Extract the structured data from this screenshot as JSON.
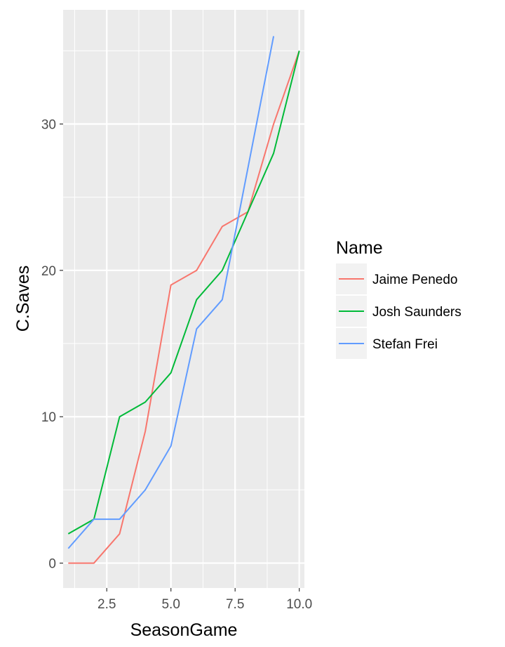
{
  "chart_data": {
    "type": "line",
    "xlabel": "SeasonGame",
    "ylabel": "C.Saves",
    "xlim": [
      0.8,
      10.2
    ],
    "ylim": [
      -1.7,
      37.8
    ],
    "x_ticks": [
      "2.5",
      "5.0",
      "7.5",
      "10.0"
    ],
    "y_ticks": [
      "0",
      "10",
      "20",
      "30"
    ],
    "grid": true,
    "legend": {
      "title": "Name",
      "placement": "right"
    },
    "series": [
      {
        "name": "Jaime Penedo",
        "color": "#F8766D",
        "x": [
          1,
          2,
          3,
          4,
          5,
          6,
          7,
          8,
          9,
          10
        ],
        "y": [
          0,
          0,
          2,
          9,
          19,
          20,
          23,
          24,
          30,
          35
        ]
      },
      {
        "name": "Josh Saunders",
        "color": "#00BA38",
        "x": [
          1,
          2,
          3,
          4,
          5,
          6,
          7,
          8,
          9,
          10
        ],
        "y": [
          2,
          3,
          10,
          11,
          13,
          18,
          20,
          24,
          28,
          35
        ]
      },
      {
        "name": "Stefan Frei",
        "color": "#619CFF",
        "x": [
          1,
          2,
          3,
          4,
          5,
          6,
          7,
          8,
          9
        ],
        "y": [
          1,
          3,
          3,
          5,
          8,
          16,
          18,
          27,
          36
        ]
      }
    ]
  }
}
